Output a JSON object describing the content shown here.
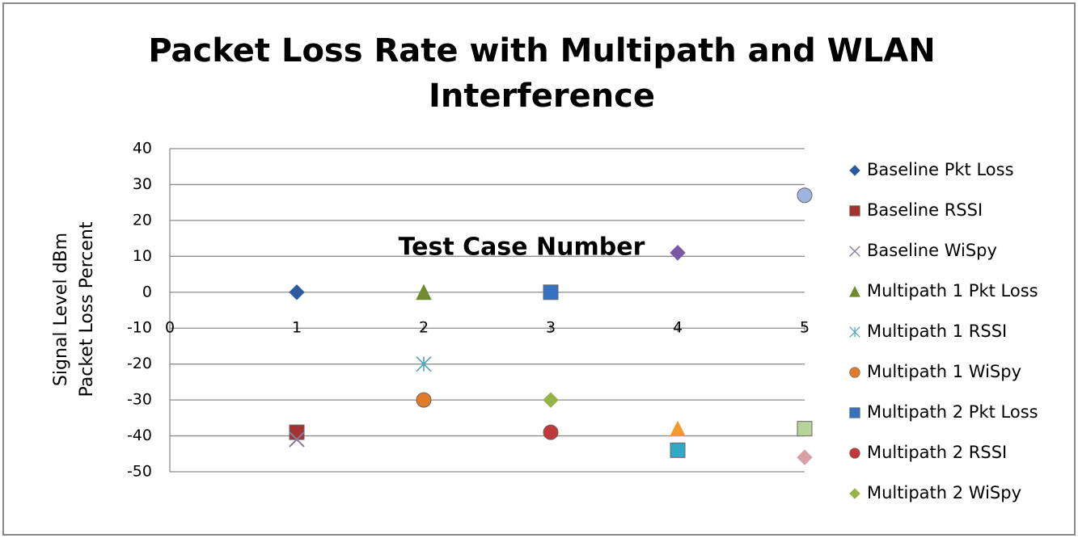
{
  "chart_data": {
    "type": "scatter",
    "title": [
      "Packet Loss Rate with Multipath and WLAN",
      "Interference"
    ],
    "x_label": "Test Case Number",
    "y_label": [
      "Signal Level dBm",
      "Packet Loss Percent"
    ],
    "xlim": [
      0,
      5
    ],
    "xticks": [
      0,
      1,
      2,
      3,
      4,
      5
    ],
    "ylim": [
      -50,
      40
    ],
    "yticks": [
      -50,
      -40,
      -30,
      -20,
      -10,
      0,
      10,
      20,
      30,
      40
    ],
    "x_axis_crosses": -10,
    "grid": true,
    "legend": "right",
    "series": [
      {
        "name": "Baseline Pkt Loss",
        "color": "#2c5a9c",
        "marker": "diamond",
        "x": [
          1
        ],
        "values": [
          0
        ]
      },
      {
        "name": "Baseline RSSI",
        "color": "#a33231",
        "marker": "square",
        "x": [
          1
        ],
        "values": [
          -39
        ]
      },
      {
        "name": "Baseline WiSpy",
        "color": "#8a7a9c",
        "marker": "x",
        "x": [
          1
        ],
        "values": [
          -41
        ]
      },
      {
        "name": "Multipath 1 Pkt Loss",
        "color": "#6f8a2f",
        "marker": "triangle",
        "x": [
          2
        ],
        "values": [
          0
        ]
      },
      {
        "name": "Multipath 1 RSSI",
        "color": "#4aa3b5",
        "marker": "asterisk",
        "x": [
          2
        ],
        "values": [
          -20
        ]
      },
      {
        "name": "Multipath 1 WiSpy",
        "color": "#e07b2a",
        "marker": "circle",
        "x": [
          2
        ],
        "values": [
          -30
        ]
      },
      {
        "name": "Multipath 2 Pkt Loss",
        "color": "#3572c0",
        "marker": "square",
        "x": [
          3
        ],
        "values": [
          0
        ]
      },
      {
        "name": "Multipath 2 RSSI",
        "color": "#c0383a",
        "marker": "circle",
        "x": [
          3
        ],
        "values": [
          -39
        ]
      },
      {
        "name": "Multipath 2 WiSpy",
        "color": "#94b447",
        "marker": "diamond",
        "x": [
          3
        ],
        "values": [
          -30
        ]
      },
      {
        "color": "#7b57a6",
        "marker": "diamond",
        "x": [
          4
        ],
        "values": [
          11
        ]
      },
      {
        "color": "#f39a2e",
        "marker": "triangle",
        "x": [
          4
        ],
        "values": [
          -38
        ]
      },
      {
        "color": "#32a9c4",
        "marker": "square",
        "x": [
          4
        ],
        "values": [
          -44
        ]
      },
      {
        "color": "#9fb4e0",
        "marker": "circle",
        "x": [
          5
        ],
        "values": [
          27
        ]
      },
      {
        "color": "#b8d39a",
        "marker": "square",
        "x": [
          5
        ],
        "values": [
          -38
        ]
      },
      {
        "color": "#d6a0a6",
        "marker": "diamond",
        "x": [
          5
        ],
        "values": [
          -46
        ]
      }
    ]
  }
}
